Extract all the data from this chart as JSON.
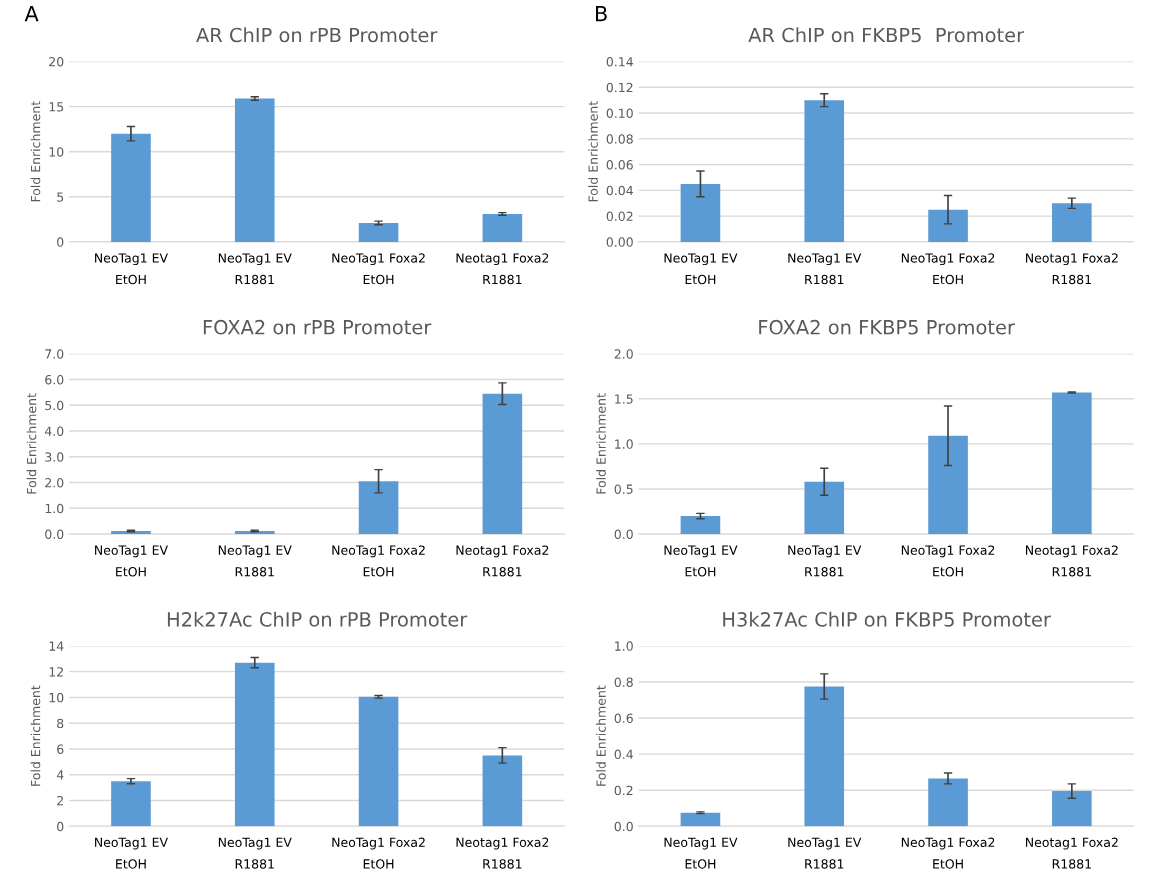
{
  "chart_data": [
    {
      "type": "bar",
      "title": "AR ChIP on rPB Promoter",
      "ylabel": "Fold Enrichment",
      "annotations": [
        "A"
      ],
      "categories": [
        "NeoTag1 EV\nEtOH",
        "NeoTag1 EV\nR1881",
        "NeoTag1 Foxa2\nEtOH",
        "Neotag1 Foxa2\nR1881"
      ],
      "values": [
        12.0,
        15.9,
        2.1,
        3.1
      ],
      "errors": [
        0.8,
        0.2,
        0.2,
        0.15
      ],
      "color": "#5b9bd5",
      "ylim": [
        0,
        20
      ],
      "yticks": [
        0,
        5,
        10,
        15,
        20
      ],
      "grid": "y"
    },
    {
      "type": "bar",
      "title": "AR ChIP on FKBP5  Promoter",
      "ylabel": "Fold Enrichment",
      "annotations": [
        "B"
      ],
      "categories": [
        "NeoTag1 EV\nEtOH",
        "NeoTag1 EV\nR1881",
        "NeoTag1 Foxa2\nEtOH",
        "Neotag1 Foxa2\nR1881"
      ],
      "values": [
        0.045,
        0.11,
        0.025,
        0.03
      ],
      "errors": [
        0.01,
        0.005,
        0.011,
        0.004
      ],
      "color": "#5b9bd5",
      "ylim": [
        0,
        0.14
      ],
      "yticks": [
        {
          "value": 0,
          "label": "0.00"
        },
        {
          "value": 0.02,
          "label": "0.02"
        },
        {
          "value": 0.04,
          "label": "0.04"
        },
        {
          "value": 0.06,
          "label": "0.06"
        },
        {
          "value": 0.08,
          "label": "0.08"
        },
        {
          "value": 0.1,
          "label": "0.10"
        },
        {
          "value": 0.12,
          "label": "0.12"
        },
        {
          "value": 0.14,
          "label": "0.14"
        }
      ],
      "grid": "y"
    },
    {
      "type": "bar",
      "title": "FOXA2 on rPB Promoter",
      "ylabel": "Fold Enrichment",
      "categories": [
        "NeoTag1 EV\nEtOH",
        "NeoTag1 EV\nR1881",
        "NeoTag1 Foxa2\nEtOH",
        "Neotag1 Foxa2\nR1881"
      ],
      "values": [
        0.12,
        0.12,
        2.05,
        5.45
      ],
      "errors": [
        0.03,
        0.03,
        0.45,
        0.42
      ],
      "color": "#5b9bd5",
      "ylim": [
        0,
        7
      ],
      "yticks": [
        {
          "value": 0,
          "label": "0.0"
        },
        {
          "value": 1,
          "label": "1.0"
        },
        {
          "value": 2,
          "label": "2.0"
        },
        {
          "value": 3,
          "label": "3.0"
        },
        {
          "value": 4,
          "label": "4.0"
        },
        {
          "value": 5,
          "label": "5.0"
        },
        {
          "value": 6,
          "label": "6.0"
        },
        {
          "value": 7,
          "label": "7.0"
        }
      ],
      "grid": "y"
    },
    {
      "type": "bar",
      "title": "FOXA2 on FKBP5 Promoter",
      "ylabel": "Fold Enrichment",
      "categories": [
        "NeoTag1 EV\nEtOH",
        "NeoTag1 EV\nR1881",
        "NeoTag1 Foxa2\nEtOH",
        "Neotag1 Foxa2\nR1881"
      ],
      "values": [
        0.2,
        0.58,
        1.09,
        1.57
      ],
      "errors": [
        0.03,
        0.15,
        0.33,
        0.005
      ],
      "color": "#5b9bd5",
      "ylim": [
        0,
        2
      ],
      "yticks": [
        {
          "value": 0,
          "label": "0.0"
        },
        0.5,
        {
          "value": 1,
          "label": "1.0"
        },
        1.5,
        {
          "value": 2,
          "label": "2.0"
        }
      ],
      "grid": "y"
    },
    {
      "type": "bar",
      "title": "H2k27Ac ChIP on rPB Promoter",
      "ylabel": "Fold Enrichment",
      "categories": [
        "NeoTag1 EV\nEtOH",
        "NeoTag1 EV\nR1881",
        "NeoTag1 Foxa2\nEtOH",
        "Neotag1 Foxa2\nR1881"
      ],
      "values": [
        3.5,
        12.7,
        10.05,
        5.5
      ],
      "errors": [
        0.2,
        0.4,
        0.1,
        0.6
      ],
      "color": "#5b9bd5",
      "ylim": [
        0,
        14
      ],
      "yticks": [
        0,
        2,
        4,
        6,
        8,
        10,
        12,
        14
      ],
      "grid": "y"
    },
    {
      "type": "bar",
      "title": "H3k27Ac ChIP on FKBP5 Promoter",
      "ylabel": "Fold Enrichment",
      "categories": [
        "NeoTag1 EV\nEtOH",
        "NeoTag1 EV\nR1881",
        "NeoTag1 Foxa2\nEtOH",
        "Neotag1 Foxa2\nR1881"
      ],
      "values": [
        0.075,
        0.775,
        0.265,
        0.195
      ],
      "errors": [
        0.005,
        0.07,
        0.03,
        0.04
      ],
      "color": "#5b9bd5",
      "ylim": [
        0,
        1
      ],
      "yticks": [
        {
          "value": 0,
          "label": "0.0"
        },
        0.2,
        0.4,
        0.6,
        0.8,
        {
          "value": 1,
          "label": "1.0"
        }
      ],
      "grid": "y"
    }
  ]
}
